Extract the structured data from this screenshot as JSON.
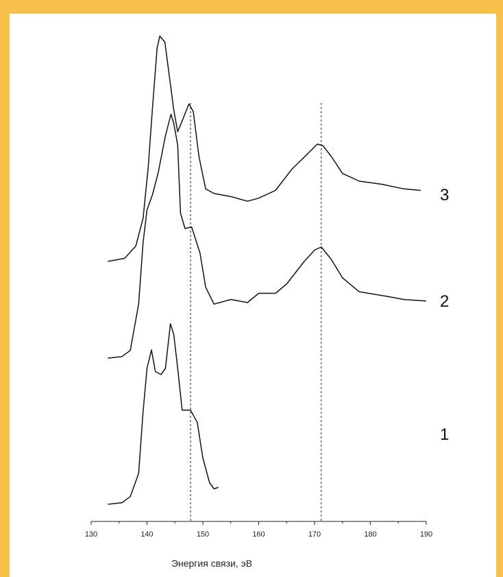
{
  "chart_data": {
    "type": "line",
    "title": "",
    "xlabel": "Энергия связи, эВ",
    "ylabel": "",
    "xlim": [
      130,
      190
    ],
    "x_ticks": [
      "130",
      "140",
      "150",
      "160",
      "170",
      "180",
      "190"
    ],
    "reference_lines": [
      147.8,
      171.2
    ],
    "grid": false,
    "legend": "none",
    "series": [
      {
        "name": "1",
        "points": [
          [
            133,
            0.0
          ],
          [
            135.5,
            0.01
          ],
          [
            137,
            0.05
          ],
          [
            138.5,
            0.2
          ],
          [
            139.3,
            0.6
          ],
          [
            140,
            0.88
          ],
          [
            140.8,
            1.0
          ],
          [
            141.5,
            0.86
          ],
          [
            142.5,
            0.84
          ],
          [
            143.3,
            0.88
          ],
          [
            144.2,
            1.17
          ],
          [
            144.8,
            1.1
          ],
          [
            145.5,
            0.88
          ],
          [
            146.3,
            0.61
          ],
          [
            147.8,
            0.61
          ],
          [
            149,
            0.53
          ],
          [
            150,
            0.3
          ],
          [
            151.2,
            0.14
          ],
          [
            152,
            0.1
          ],
          [
            152.8,
            0.11
          ]
        ]
      },
      {
        "name": "2",
        "points": [
          [
            133,
            0.0
          ],
          [
            135.5,
            0.01
          ],
          [
            137,
            0.05
          ],
          [
            138.5,
            0.35
          ],
          [
            139.3,
            0.75
          ],
          [
            140,
            0.96
          ],
          [
            141,
            1.06
          ],
          [
            142,
            1.2
          ],
          [
            143.3,
            1.44
          ],
          [
            144.3,
            1.58
          ],
          [
            144.8,
            1.52
          ],
          [
            145.5,
            1.38
          ],
          [
            146,
            0.94
          ],
          [
            146.8,
            0.84
          ],
          [
            148,
            0.85
          ],
          [
            149.5,
            0.68
          ],
          [
            150.5,
            0.46
          ],
          [
            152,
            0.35
          ],
          [
            155,
            0.38
          ],
          [
            158,
            0.36
          ],
          [
            160,
            0.42
          ],
          [
            163,
            0.42
          ],
          [
            165,
            0.48
          ],
          [
            168,
            0.62
          ],
          [
            170,
            0.7
          ],
          [
            171.2,
            0.72
          ],
          [
            173,
            0.64
          ],
          [
            175,
            0.52
          ],
          [
            178,
            0.43
          ],
          [
            183,
            0.4
          ],
          [
            186,
            0.38
          ],
          [
            190,
            0.37
          ]
        ]
      },
      {
        "name": "3",
        "points": [
          [
            133,
            0.0
          ],
          [
            136,
            0.02
          ],
          [
            138,
            0.1
          ],
          [
            139.3,
            0.28
          ],
          [
            140.2,
            0.6
          ],
          [
            141,
            1.0
          ],
          [
            141.8,
            1.38
          ],
          [
            142.3,
            1.46
          ],
          [
            143.2,
            1.42
          ],
          [
            144,
            1.2
          ],
          [
            144.8,
            0.98
          ],
          [
            145.5,
            0.84
          ],
          [
            146.3,
            0.91
          ],
          [
            147.5,
            1.02
          ],
          [
            148.3,
            0.97
          ],
          [
            149.3,
            0.68
          ],
          [
            150.5,
            0.47
          ],
          [
            152,
            0.44
          ],
          [
            155,
            0.42
          ],
          [
            158,
            0.39
          ],
          [
            160,
            0.41
          ],
          [
            163,
            0.46
          ],
          [
            166,
            0.6
          ],
          [
            168,
            0.67
          ],
          [
            170.5,
            0.76
          ],
          [
            171.5,
            0.75
          ],
          [
            173,
            0.68
          ],
          [
            175,
            0.57
          ],
          [
            178,
            0.52
          ],
          [
            182,
            0.5
          ],
          [
            186,
            0.47
          ],
          [
            189,
            0.46
          ]
        ]
      }
    ]
  }
}
